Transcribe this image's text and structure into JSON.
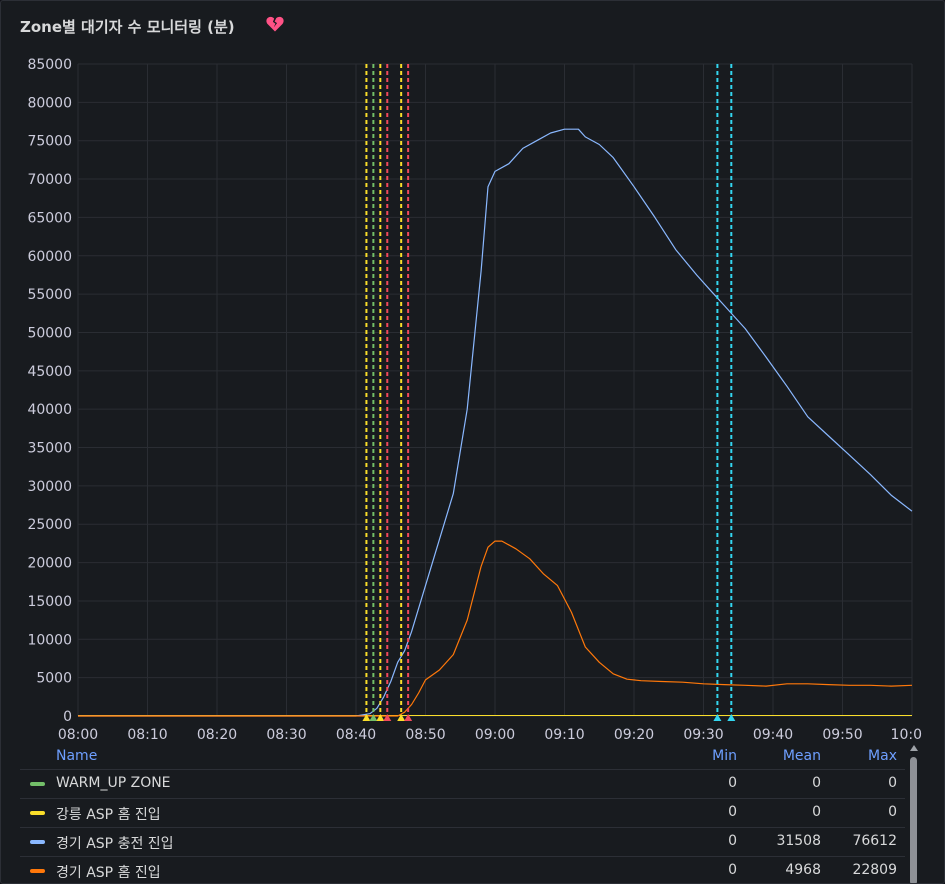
{
  "panel": {
    "title": "Zone별 대기자 수 모니터링 (분)",
    "alert_icon": "broken-heart-icon",
    "alert_color": "#ff5286"
  },
  "chart_data": {
    "type": "line",
    "title": "Zone별 대기자 수 모니터링 (분)",
    "xlabel": "",
    "ylabel": "",
    "x_ticks": [
      "08:00",
      "08:10",
      "08:20",
      "08:30",
      "08:40",
      "08:50",
      "09:00",
      "09:10",
      "09:20",
      "09:30",
      "09:40",
      "09:50",
      "10:0"
    ],
    "xlim": [
      "08:00",
      "10:00"
    ],
    "ylim": [
      0,
      85000
    ],
    "y_ticks": [
      0,
      5000,
      10000,
      15000,
      20000,
      25000,
      30000,
      35000,
      40000,
      45000,
      50000,
      55000,
      60000,
      65000,
      70000,
      75000,
      80000,
      85000
    ],
    "grid": true,
    "legend_position": "bottom",
    "series": [
      {
        "name": "경기 ASP 충전 진입",
        "color": "#8ab8ff",
        "points": [
          [
            "08:00",
            0
          ],
          [
            "08:40",
            0
          ],
          [
            "08:42",
            300
          ],
          [
            "08:43",
            1000
          ],
          [
            "08:44",
            2500
          ],
          [
            "08:45",
            4500
          ],
          [
            "08:46",
            7000
          ],
          [
            "08:47",
            8500
          ],
          [
            "08:48",
            11000
          ],
          [
            "08:50",
            17000
          ],
          [
            "08:52",
            23000
          ],
          [
            "08:54",
            29000
          ],
          [
            "08:56",
            40000
          ],
          [
            "08:58",
            58000
          ],
          [
            "08:59",
            69000
          ],
          [
            "09:00",
            71000
          ],
          [
            "09:02",
            72000
          ],
          [
            "09:04",
            74000
          ],
          [
            "09:06",
            75000
          ],
          [
            "09:08",
            76000
          ],
          [
            "09:10",
            76500
          ],
          [
            "09:12",
            76500
          ],
          [
            "09:13",
            75500
          ],
          [
            "09:15",
            74500
          ],
          [
            "09:17",
            72800
          ],
          [
            "09:20",
            69000
          ],
          [
            "09:23",
            65000
          ],
          [
            "09:26",
            60800
          ],
          [
            "09:29",
            57500
          ],
          [
            "09:31",
            55500
          ],
          [
            "09:33",
            53500
          ],
          [
            "09:36",
            50500
          ],
          [
            "09:39",
            46800
          ],
          [
            "09:42",
            43000
          ],
          [
            "09:45",
            39000
          ],
          [
            "09:48",
            36500
          ],
          [
            "09:51",
            34000
          ],
          [
            "09:54",
            31500
          ],
          [
            "09:57",
            28800
          ],
          [
            "10:00",
            26700
          ]
        ]
      },
      {
        "name": "경기 ASP 홈 진입",
        "color": "#ff780a",
        "points": [
          [
            "08:00",
            0
          ],
          [
            "08:46",
            0
          ],
          [
            "08:47",
            500
          ],
          [
            "08:48",
            1500
          ],
          [
            "08:49",
            3000
          ],
          [
            "08:50",
            4700
          ],
          [
            "08:52",
            6000
          ],
          [
            "08:54",
            8000
          ],
          [
            "08:56",
            12500
          ],
          [
            "08:58",
            19500
          ],
          [
            "08:59",
            22000
          ],
          [
            "09:00",
            22800
          ],
          [
            "09:01",
            22800
          ],
          [
            "09:03",
            21800
          ],
          [
            "09:05",
            20500
          ],
          [
            "09:07",
            18500
          ],
          [
            "09:09",
            17000
          ],
          [
            "09:11",
            13500
          ],
          [
            "09:13",
            9000
          ],
          [
            "09:15",
            7000
          ],
          [
            "09:17",
            5500
          ],
          [
            "09:19",
            4800
          ],
          [
            "09:21",
            4600
          ],
          [
            "09:24",
            4500
          ],
          [
            "09:27",
            4400
          ],
          [
            "09:30",
            4200
          ],
          [
            "09:33",
            4100
          ],
          [
            "09:36",
            4000
          ],
          [
            "09:39",
            3900
          ],
          [
            "09:42",
            4200
          ],
          [
            "09:45",
            4200
          ],
          [
            "09:48",
            4100
          ],
          [
            "09:51",
            4000
          ],
          [
            "09:54",
            4000
          ],
          [
            "09:57",
            3900
          ],
          [
            "10:00",
            4000
          ]
        ]
      }
    ],
    "annotations": [
      {
        "time": "08:41.5",
        "color": "#fade2a"
      },
      {
        "time": "08:42.5",
        "color": "#73bf69"
      },
      {
        "time": "08:43.5",
        "color": "#fade2a"
      },
      {
        "time": "08:44.5",
        "color": "#f2495c"
      },
      {
        "time": "08:46.5",
        "color": "#fade2a"
      },
      {
        "time": "08:47.5",
        "color": "#f2495c"
      },
      {
        "time": "09:32",
        "color": "#33d6f0"
      },
      {
        "time": "09:34",
        "color": "#33d6f0"
      }
    ]
  },
  "legend": {
    "header": {
      "name": "Name",
      "min": "Min",
      "mean": "Mean",
      "max": "Max"
    },
    "rows": [
      {
        "name": "WARM_UP ZONE",
        "color": "#73bf69",
        "min": "0",
        "mean": "0",
        "max": "0"
      },
      {
        "name": "강릉 ASP 홈 진입",
        "color": "#fade2a",
        "min": "0",
        "mean": "0",
        "max": "0"
      },
      {
        "name": "경기 ASP 충전 진입",
        "color": "#8ab8ff",
        "min": "0",
        "mean": "31508",
        "max": "76612"
      },
      {
        "name": "경기 ASP 홈 진입",
        "color": "#ff780a",
        "min": "0",
        "mean": "4968",
        "max": "22809"
      }
    ]
  }
}
